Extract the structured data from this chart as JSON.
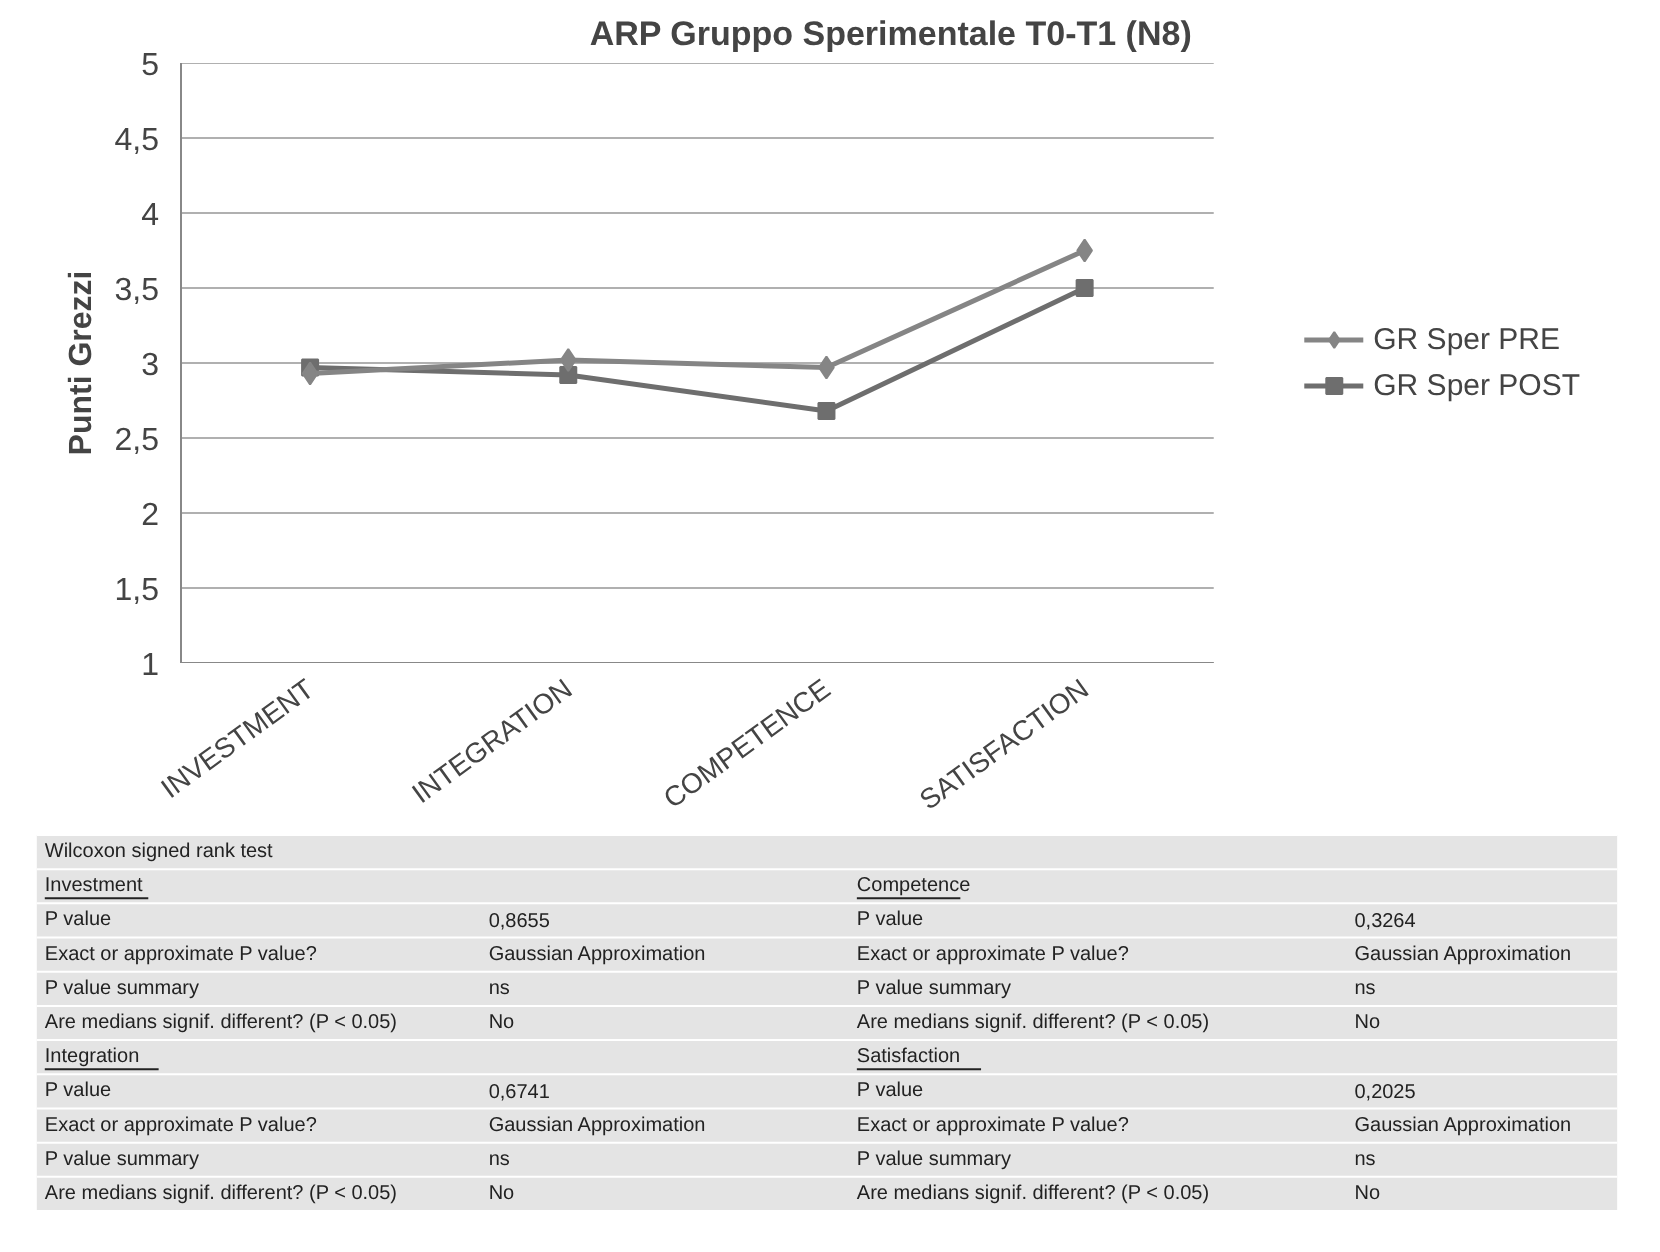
{
  "chart_data": {
    "type": "line",
    "title": "ARP Gruppo Sperimentale T0-T1 (N8)",
    "ylabel": "Punti Grezzi",
    "categories": [
      "INVESTMENT",
      "INTEGRATION",
      "COMPETENCE",
      "SATISFACTION"
    ],
    "series": [
      {
        "name": "GR Sper PRE",
        "color": "#858585",
        "marker": "diamond",
        "values": [
          2.93,
          3.02,
          2.97,
          3.75
        ]
      },
      {
        "name": "GR Sper POST",
        "color": "#6e6e6e",
        "marker": "square",
        "values": [
          2.97,
          2.92,
          2.68,
          3.5
        ]
      }
    ],
    "ylim": [
      1,
      5
    ],
    "yticks": [
      1,
      {
        "value": 1.5,
        "label": "1,5"
      },
      2,
      {
        "value": 2.5,
        "label": "2,5"
      },
      3,
      {
        "value": 3.5,
        "label": "3,5"
      },
      4,
      {
        "value": 4.5,
        "label": "4,5"
      },
      5
    ],
    "grid": "y",
    "legend": "right",
    "line_style": "solid",
    "annotations": [
      "Wilcoxon signed rank test",
      "Investment",
      "P value",
      "0,8655",
      "Exact or approximate  P value?",
      "Gaussian Approximation",
      "P value summary",
      "ns",
      "Are medians signif. different? (P < 0.05)",
      "No",
      "Competence",
      "P value",
      "0,3264",
      "Exact or approximate  P value?",
      "Gaussian Approximation",
      "P value summary",
      "ns",
      "Are medians signif. different? (P < 0.05)",
      "No",
      "Integration",
      "P value",
      "0,6741",
      "Exact or approximate  P value?",
      "Gaussian Approximation",
      "P value summary",
      "ns",
      "Are medians signif. different? (P < 0.05)",
      "No",
      "Satisfaction",
      "P value",
      "0,2025",
      "Exact or approximate  P value?",
      "Gaussian Approximation",
      "P value summary",
      "ns",
      "Are medians signif. different? (P < 0.05)",
      "No"
    ]
  }
}
